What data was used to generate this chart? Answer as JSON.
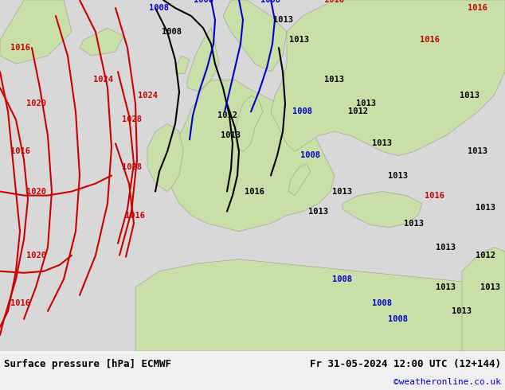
{
  "title_left": "Surface pressure [hPa] ECMWF",
  "title_right": "Fr 31-05-2024 12:00 UTC (12+144)",
  "credit": "©weatheronline.co.uk",
  "credit_color": "#0000cc",
  "land_color": "#c8dfa8",
  "sea_color": "#d8d8d8",
  "footer_bg": "#f0f0f0",
  "text_color": "#000000",
  "isobar_black_color": "#000000",
  "isobar_red_color": "#cc0000",
  "isobar_blue_color": "#0000cc",
  "figwidth": 6.34,
  "figheight": 4.9,
  "dpi": 100
}
